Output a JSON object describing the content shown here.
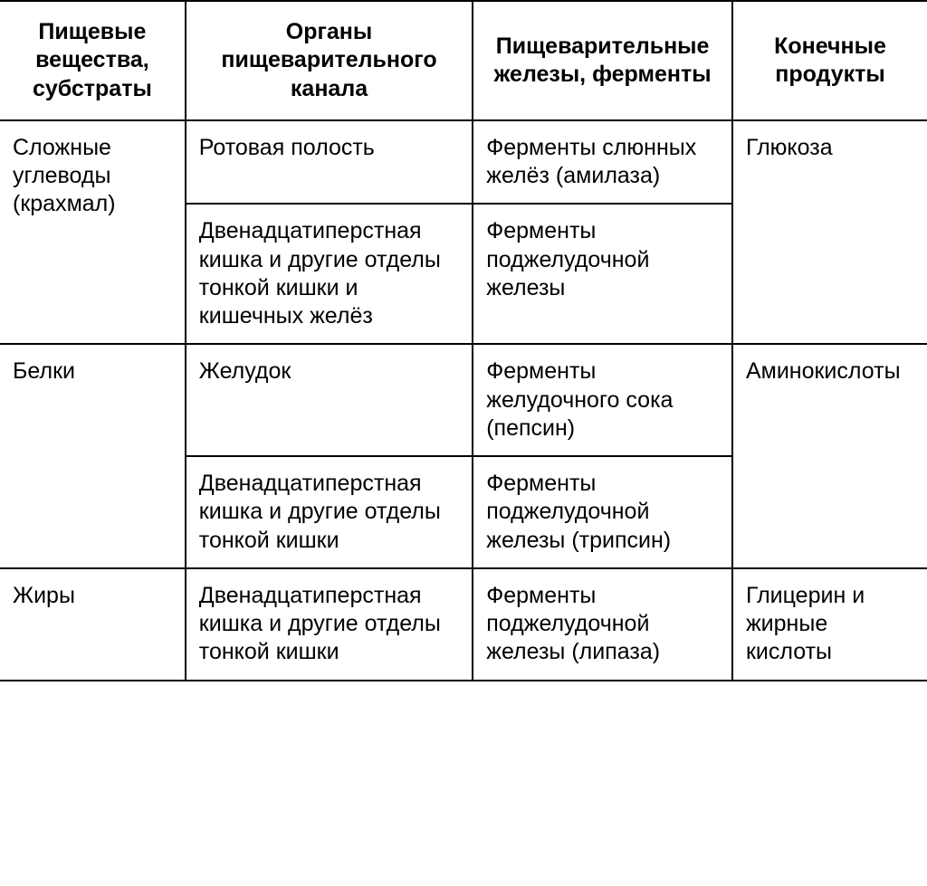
{
  "table": {
    "type": "table",
    "background_color": "#ffffff",
    "border_color": "#000000",
    "border_width": 2,
    "header_fontsize": 25,
    "header_fontweight": "bold",
    "cell_fontsize": 25,
    "text_color": "#000000",
    "column_widths_pct": [
      20,
      31,
      28,
      21
    ],
    "columns": [
      "Пищевые вещества, субстраты",
      "Органы пищеварительного канала",
      "Пищеварительные железы, ферменты",
      "Конечные продукты"
    ],
    "rows": [
      {
        "substrate": "Сложные углеводы (крахмал)",
        "cells": {
          "r1c2": "Ротовая полость",
          "r1c3": "Ферменты слюнных желёз (амилаза)",
          "r1c4": "Глюкоза",
          "r2c2": "Двенадцатиперстная кишка и другие отделы тонкой кишки и кишечных желёз",
          "r2c3": "Ферменты поджелудочной железы"
        }
      },
      {
        "substrate": "Белки",
        "cells": {
          "r3c2": "Желудок",
          "r3c3": "Ферменты желудочного сока (пепсин)",
          "r3c4": "Аминокислоты",
          "r4c2": "Двенадцатиперстная кишка и другие отделы тонкой кишки",
          "r4c3": "Ферменты поджелудочной железы (трипсин)"
        }
      },
      {
        "substrate": "Жиры",
        "cells": {
          "r5c2": "Двенадцатиперстная кишка и другие отделы тонкой кишки",
          "r5c3": "Ферменты поджелудочной железы (липаза)",
          "r5c4": "Глицерин и жирные кислоты"
        }
      }
    ]
  }
}
